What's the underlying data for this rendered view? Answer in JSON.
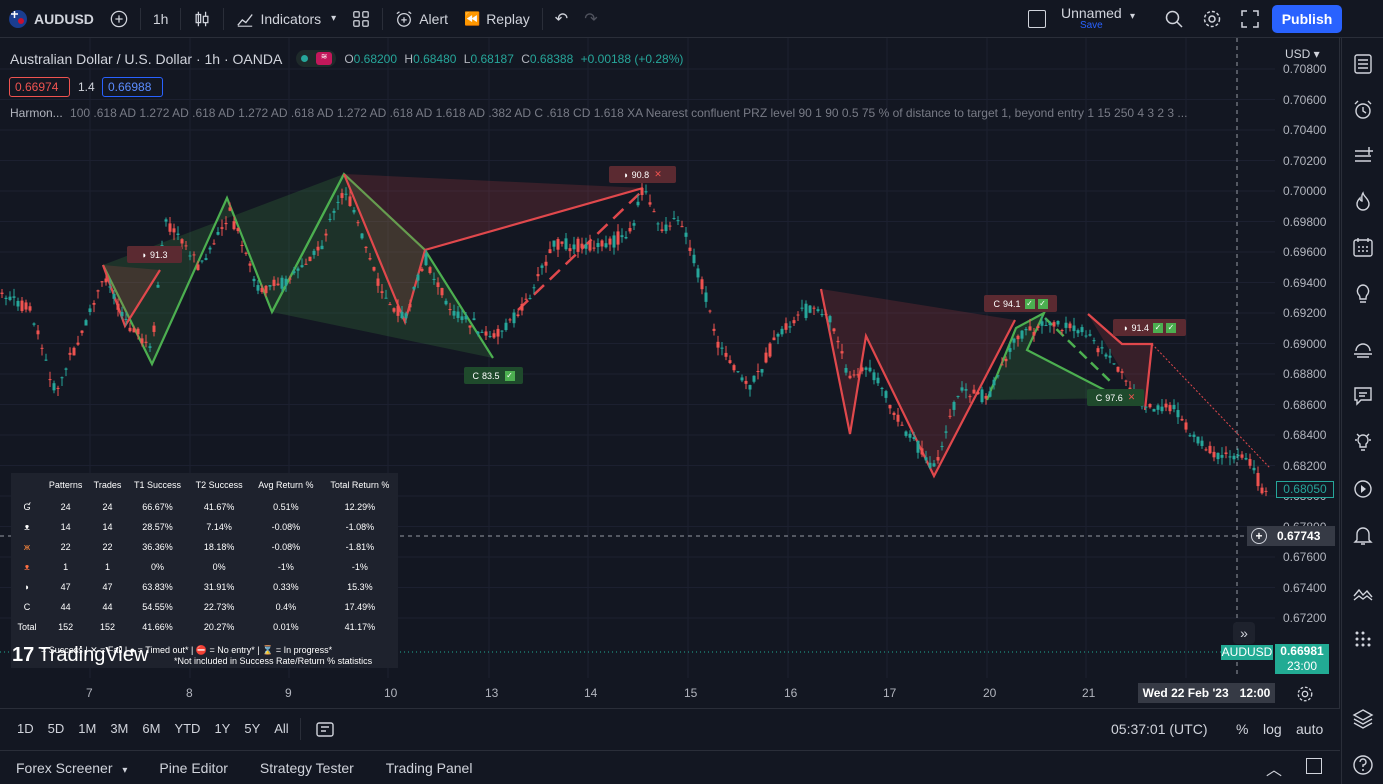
{
  "topbar": {
    "symbol": "AUDUSD",
    "interval": "1h",
    "indicators_label": "Indicators",
    "alert_label": "Alert",
    "replay_label": "Replay",
    "layout_name": "Unnamed",
    "layout_save": "Save",
    "publish_label": "Publish"
  },
  "legend": {
    "title": "Australian Dollar / U.S. Dollar · 1h · OANDA",
    "o_label": "O",
    "o_value": "0.68200",
    "h_label": "H",
    "h_value": "0.68480",
    "l_label": "L",
    "l_value": "0.68187",
    "c_label": "C",
    "c_value": "0.68388",
    "change": "+0.00188 (+0.28%)",
    "bid": "0.66974",
    "spread": "1.4",
    "ask": "0.66988"
  },
  "harmonic": {
    "name": "Harmon...",
    "params": "100 .618 AD 1.272 AD .618 AD 1.272 AD .618 AD 1.272 AD .618 AD 1.618 AD .382 AD C .618 CD 1.618 XA Nearest confluent PRZ level 90 1 90 0.5 75 % of distance to target 1, beyond entry 1 15 250 4 3 2 3 ..."
  },
  "yaxis": {
    "currency": "USD",
    "ticks": [
      "0.70800",
      "0.70600",
      "0.70400",
      "0.70200",
      "0.70000",
      "0.69800",
      "0.69600",
      "0.69400",
      "0.69200",
      "0.69000",
      "0.68800",
      "0.68600",
      "0.68400",
      "0.68200",
      "0.68000",
      "0.67800",
      "0.67600",
      "0.67400",
      "0.67200"
    ],
    "last_price": "0.68050",
    "crosshair_price": "0.67743",
    "symbol_tag": "AUDUSD",
    "symbol_price": "0.66981",
    "countdown": "23:00"
  },
  "xaxis": {
    "ticks": [
      "7",
      "8",
      "9",
      "10",
      "13",
      "14",
      "15",
      "16",
      "17",
      "20",
      "21"
    ],
    "crosshair_date": "Wed 22 Feb '23",
    "crosshair_time": "12:00"
  },
  "pattern_tags": [
    {
      "text": "91.3"
    },
    {
      "text": "90.8"
    },
    {
      "text": "83.5"
    },
    {
      "text": "94.1"
    },
    {
      "text": "91.4"
    },
    {
      "text": "97.6"
    }
  ],
  "stats": {
    "headers": [
      "Patterns",
      "Trades",
      "T1 Success",
      "T2 Success",
      "Avg Return %",
      "Total Return %"
    ],
    "rows": [
      {
        "icon": "G",
        "values": [
          "24",
          "24",
          "66.67%",
          "41.67%",
          "0.51%",
          "12.29%"
        ]
      },
      {
        "icon": "bat",
        "values": [
          "14",
          "14",
          "28.57%",
          "7.14%",
          "-0.08%",
          "-1.08%"
        ]
      },
      {
        "icon": "butterfly",
        "values": [
          "22",
          "22",
          "36.36%",
          "18.18%",
          "-0.08%",
          "-1.81%"
        ]
      },
      {
        "icon": "crab",
        "values": [
          "1",
          "1",
          "0%",
          "0%",
          "-1%",
          "-1%"
        ]
      },
      {
        "icon": "shark",
        "values": [
          "47",
          "47",
          "63.83%",
          "31.91%",
          "0.33%",
          "15.3%"
        ]
      },
      {
        "icon": "cypher",
        "values": [
          "44",
          "44",
          "54.55%",
          "22.73%",
          "0.4%",
          "17.49%"
        ]
      },
      {
        "icon": "Total",
        "values": [
          "152",
          "152",
          "41.66%",
          "20.27%",
          "0.01%",
          "41.17%"
        ]
      }
    ],
    "footer1": "= Success | ✕ = Fail | ● = Timed out* | ⛔ = No entry* | ⌛ = In progress*",
    "footer2": "*Not included in Success Rate/Return % statistics"
  },
  "watermark": "TradingView",
  "bottom_toolbar": {
    "ranges": [
      "1D",
      "5D",
      "1M",
      "3M",
      "6M",
      "YTD",
      "1Y",
      "5Y",
      "All"
    ],
    "clock": "05:37:01 (UTC)",
    "pct": "%",
    "log": "log",
    "auto": "auto"
  },
  "panels": [
    "Forex Screener",
    "Pine Editor",
    "Strategy Tester",
    "Trading Panel"
  ],
  "colors": {
    "bg": "#131722",
    "up": "#26a69a",
    "down": "#ef5350",
    "bull_pattern": "#4caf50",
    "bear_pattern": "#e0484c",
    "accent": "#2962ff"
  }
}
